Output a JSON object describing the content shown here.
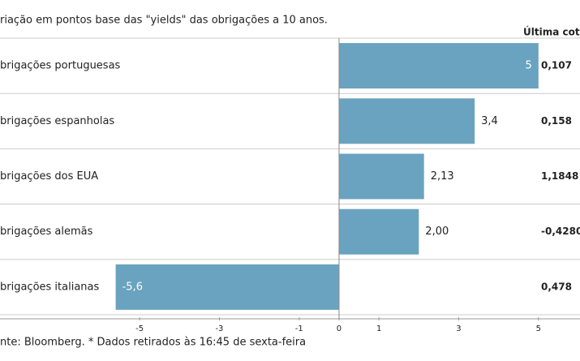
{
  "chart_data": {
    "type": "hbar",
    "subtitle": "riação em pontos base das \"yields\" das obrigações a 10 anos.",
    "column_header": "Última cotaç",
    "categories": [
      "brigações portuguesas",
      "brigações espanholas",
      "brigações dos EUA",
      "brigações alemãs",
      "brigações italianas"
    ],
    "values": [
      5,
      3.4,
      2.13,
      2.0,
      -5.6
    ],
    "value_labels": [
      "5",
      "3,4",
      "2,13",
      "2,00",
      "-5,6"
    ],
    "quotes": [
      "0,107",
      "0,158",
      "1,1848",
      "-0,4280",
      "0,478"
    ],
    "color": "#6aa3bf",
    "xlim": [
      -8.5,
      6
    ],
    "xticks": [
      -5,
      -3,
      -1,
      0,
      1,
      3,
      5
    ],
    "source": "nte: Bloomberg.  * Dados retirados às 16:45 de sexta-feira"
  }
}
